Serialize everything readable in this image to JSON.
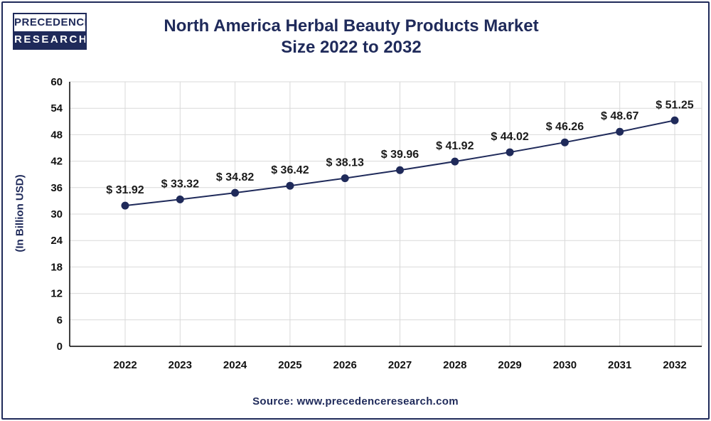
{
  "brand": {
    "line1": "PRECEDENCE",
    "line2": "RESEARCH"
  },
  "source": "Source: www.precedenceresearch.com",
  "colors": {
    "primary": "#1f2a5a",
    "grid": "#d9d9d9",
    "axis": "#000000"
  },
  "chart_data": {
    "type": "line",
    "title": "North America Herbal Beauty Products Market Size 2022 to 2032",
    "title_lines": [
      "North America Herbal Beauty Products Market",
      "Size 2022 to 2032"
    ],
    "xlabel": "",
    "ylabel": "(In Billion USD)",
    "ylim": [
      0,
      60
    ],
    "yticks": [
      0,
      6,
      12,
      18,
      24,
      30,
      36,
      42,
      48,
      54,
      60
    ],
    "grid": true,
    "categories": [
      "2022",
      "2023",
      "2024",
      "2025",
      "2026",
      "2027",
      "2028",
      "2029",
      "2030",
      "2031",
      "2032"
    ],
    "values": [
      31.92,
      33.32,
      34.82,
      36.42,
      38.13,
      39.96,
      41.92,
      44.02,
      46.26,
      48.67,
      51.25
    ],
    "data_labels": [
      "$ 31.92",
      "$ 33.32",
      "$ 34.82",
      "$ 36.42",
      "$ 38.13",
      "$ 39.96",
      "$ 41.92",
      "$ 44.02",
      "$ 46.26",
      "$ 48.67",
      "$ 51.25"
    ]
  }
}
